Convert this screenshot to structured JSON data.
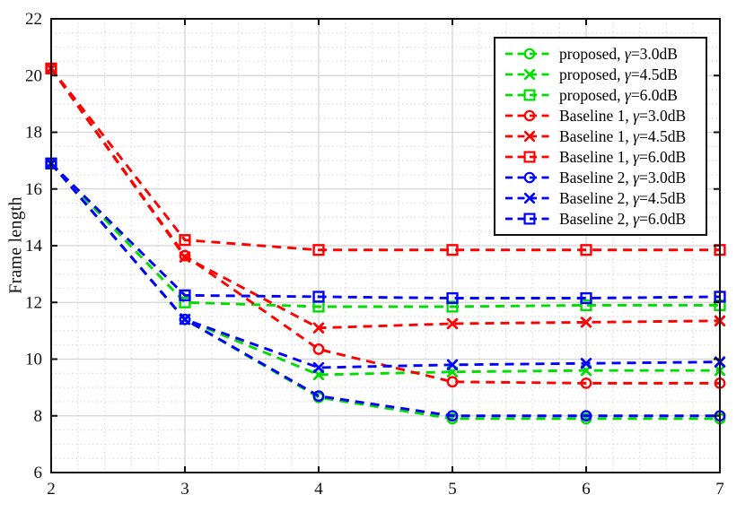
{
  "figure": {
    "ylabel": "Frame length",
    "background": "#ffffff"
  },
  "chart_data": {
    "type": "line",
    "x": [
      2,
      3,
      4,
      5,
      6,
      7
    ],
    "xlim": [
      2,
      7
    ],
    "ylim": [
      6,
      22
    ],
    "x_ticks": [
      2,
      3,
      4,
      5,
      6,
      7
    ],
    "y_ticks": [
      6,
      8,
      10,
      12,
      14,
      16,
      18,
      20,
      22
    ],
    "xlabel": "",
    "ylabel": "Frame length",
    "title": "",
    "grid": {
      "major": true,
      "minor": true,
      "minor_x_step": 0.2,
      "minor_y_step": 0.5
    },
    "legend_position": "top-right",
    "line_style": "dashed",
    "series": [
      {
        "name": "proposed",
        "gamma": "3.0dB",
        "label": "proposed, γ=3.0dB",
        "color": "#00dd00",
        "marker": "circle",
        "values": [
          16.9,
          11.4,
          8.65,
          7.9,
          7.9,
          7.9
        ]
      },
      {
        "name": "proposed",
        "gamma": "4.5dB",
        "label": "proposed, γ=4.5dB",
        "color": "#00dd00",
        "marker": "x",
        "values": [
          16.9,
          11.4,
          9.45,
          9.55,
          9.6,
          9.6
        ]
      },
      {
        "name": "proposed",
        "gamma": "6.0dB",
        "label": "proposed, γ=6.0dB",
        "color": "#00dd00",
        "marker": "square",
        "values": [
          16.9,
          12.0,
          11.85,
          11.85,
          11.9,
          11.9
        ]
      },
      {
        "name": "Baseline 1",
        "gamma": "3.0dB",
        "label": "Baseline 1, γ=3.0dB",
        "color": "#ff0000",
        "marker": "circle",
        "values": [
          20.25,
          13.65,
          10.35,
          9.2,
          9.15,
          9.15
        ]
      },
      {
        "name": "Baseline 1",
        "gamma": "4.5dB",
        "label": "Baseline 1, γ=4.5dB",
        "color": "#ff0000",
        "marker": "x",
        "values": [
          20.25,
          13.6,
          11.1,
          11.25,
          11.3,
          11.35
        ]
      },
      {
        "name": "Baseline 1",
        "gamma": "6.0dB",
        "label": "Baseline 1, γ=6.0dB",
        "color": "#ff0000",
        "marker": "square",
        "values": [
          20.25,
          14.2,
          13.85,
          13.85,
          13.85,
          13.85
        ]
      },
      {
        "name": "Baseline 2",
        "gamma": "3.0dB",
        "label": "Baseline 2, γ=3.0dB",
        "color": "#0000ff",
        "marker": "circle",
        "values": [
          16.9,
          11.4,
          8.7,
          8.0,
          8.0,
          8.0
        ]
      },
      {
        "name": "Baseline 2",
        "gamma": "4.5dB",
        "label": "Baseline 2, γ=4.5dB",
        "color": "#0000ff",
        "marker": "x",
        "values": [
          16.9,
          11.4,
          9.7,
          9.8,
          9.85,
          9.9
        ]
      },
      {
        "name": "Baseline 2",
        "gamma": "6.0dB",
        "label": "Baseline 2, γ=6.0dB",
        "color": "#0000ff",
        "marker": "square",
        "values": [
          16.9,
          12.25,
          12.2,
          12.15,
          12.15,
          12.2
        ]
      }
    ]
  },
  "colors": {
    "proposed": "#00dd00",
    "baseline1": "#ff0000",
    "baseline2": "#0000ff",
    "axis": "#111111",
    "grid_major": "#d4d4d4",
    "grid_minor": "#dcdcdc",
    "tick_label": "#111111"
  }
}
